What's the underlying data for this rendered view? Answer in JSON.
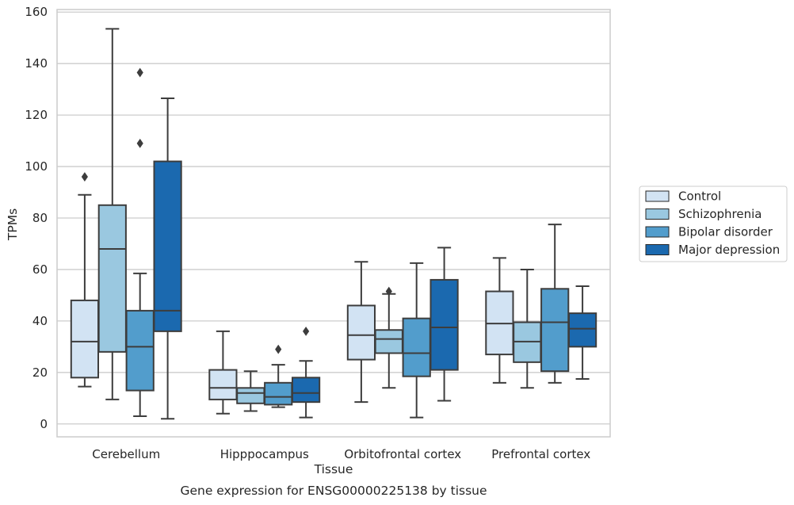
{
  "chart_data": {
    "type": "box",
    "caption": "Gene expression for ENSG00000225138 by tissue",
    "xlabel": "Tissue",
    "ylabel": "TPMs",
    "ylim": [
      -5,
      161
    ],
    "yticks": [
      0,
      20,
      40,
      60,
      80,
      100,
      120,
      140,
      160
    ],
    "grid": "horizontal",
    "legend_position": "right",
    "categories": [
      "Cerebellum",
      "Hipppocampus",
      "Orbitofrontal cortex",
      "Prefrontal cortex"
    ],
    "series": [
      {
        "name": "Control",
        "color": "#d2e3f3",
        "boxes": [
          {
            "whislo": 14.5,
            "q1": 18,
            "med": 32,
            "q3": 48,
            "whishi": 89,
            "fliers": [
              96
            ]
          },
          {
            "whislo": 4,
            "q1": 9.5,
            "med": 14,
            "q3": 21,
            "whishi": 36,
            "fliers": []
          },
          {
            "whislo": 8.5,
            "q1": 25,
            "med": 34.5,
            "q3": 46,
            "whishi": 63,
            "fliers": []
          },
          {
            "whislo": 16,
            "q1": 27,
            "med": 39,
            "q3": 51.5,
            "whishi": 64.5,
            "fliers": []
          }
        ]
      },
      {
        "name": "Schizophrenia",
        "color": "#9ac8e0",
        "boxes": [
          {
            "whislo": 9.5,
            "q1": 28,
            "med": 68,
            "q3": 85,
            "whishi": 153.5,
            "fliers": []
          },
          {
            "whislo": 5,
            "q1": 8,
            "med": 12,
            "q3": 14,
            "whishi": 20.5,
            "fliers": []
          },
          {
            "whislo": 14,
            "q1": 27.5,
            "med": 33,
            "q3": 36.5,
            "whishi": 50.5,
            "fliers": [
              51.5
            ]
          },
          {
            "whislo": 14,
            "q1": 24,
            "med": 32,
            "q3": 39.5,
            "whishi": 60,
            "fliers": []
          }
        ]
      },
      {
        "name": "Bipolar disorder",
        "color": "#529dcc",
        "boxes": [
          {
            "whislo": 3,
            "q1": 13,
            "med": 30,
            "q3": 44,
            "whishi": 58.5,
            "fliers": [
              109,
              136.5
            ]
          },
          {
            "whislo": 6.5,
            "q1": 7.5,
            "med": 10.5,
            "q3": 16,
            "whishi": 23,
            "fliers": [
              29
            ]
          },
          {
            "whislo": 2.5,
            "q1": 18.5,
            "med": 27.5,
            "q3": 41,
            "whishi": 62.5,
            "fliers": []
          },
          {
            "whislo": 16,
            "q1": 20.5,
            "med": 39.5,
            "q3": 52.5,
            "whishi": 77.5,
            "fliers": []
          }
        ]
      },
      {
        "name": "Major depression",
        "color": "#1b69af",
        "boxes": [
          {
            "whislo": 2,
            "q1": 36,
            "med": 44,
            "q3": 102,
            "whishi": 126.5,
            "fliers": []
          },
          {
            "whislo": 2.5,
            "q1": 8.5,
            "med": 12,
            "q3": 18,
            "whishi": 24.5,
            "fliers": [
              36
            ]
          },
          {
            "whislo": 9,
            "q1": 21,
            "med": 37.5,
            "q3": 56,
            "whishi": 68.5,
            "fliers": []
          },
          {
            "whislo": 17.5,
            "q1": 30,
            "med": 37,
            "q3": 43,
            "whishi": 53.5,
            "fliers": []
          }
        ]
      }
    ]
  }
}
